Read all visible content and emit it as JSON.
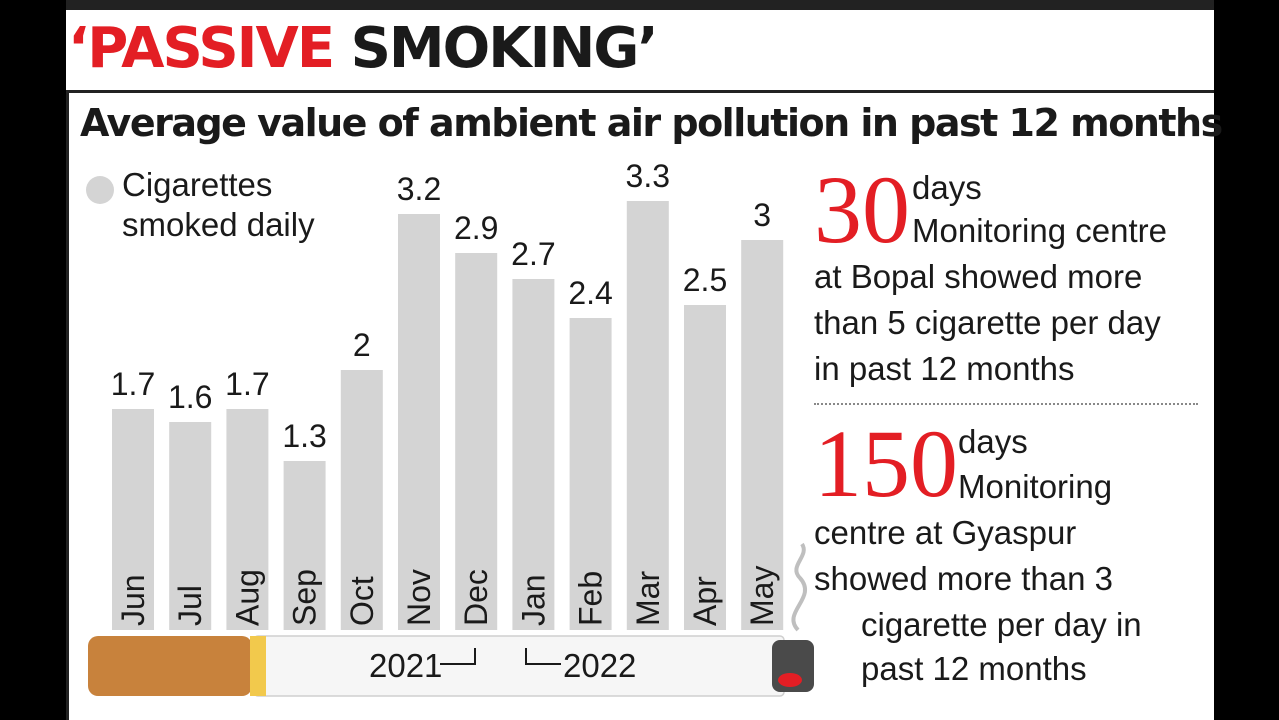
{
  "headline": {
    "red": "‘PASSIVE",
    "black": "SMOKING’"
  },
  "chart_data": {
    "type": "bar",
    "title": "Average value of ambient air pollution in past 12 months",
    "legend": "Cigarettes smoked daily",
    "categories": [
      "Jun",
      "Jul",
      "Aug",
      "Sep",
      "Oct",
      "Nov",
      "Dec",
      "Jan",
      "Feb",
      "Mar",
      "Apr",
      "May"
    ],
    "series": [
      {
        "name": "Cigarettes smoked daily",
        "values": [
          1.7,
          1.6,
          1.7,
          1.3,
          2,
          3.2,
          2.9,
          2.7,
          2.4,
          3.3,
          2.5,
          3
        ]
      }
    ],
    "value_labels": [
      "1.7",
      "1.6",
      "1.7",
      "1.3",
      "2",
      "3.2",
      "2.9",
      "2.7",
      "2.4",
      "3.3",
      "2.5",
      "3"
    ],
    "years": [
      "2021",
      "2022"
    ],
    "bar_color": "#d4d4d4"
  },
  "stats": [
    {
      "number": "30",
      "unit": "days",
      "lines": [
        "Monitoring centre",
        "at Bopal showed more",
        "than 5 cigarette per day",
        "in past 12 months"
      ]
    },
    {
      "number": "150",
      "unit": "days",
      "lines": [
        "Monitoring",
        "centre at Gyaspur",
        "showed more than 3",
        "cigarette per day in",
        "past 12 months"
      ]
    }
  ],
  "colors": {
    "accent": "#e31e24",
    "text": "#1a1a1a",
    "filter": "#c8823c"
  }
}
